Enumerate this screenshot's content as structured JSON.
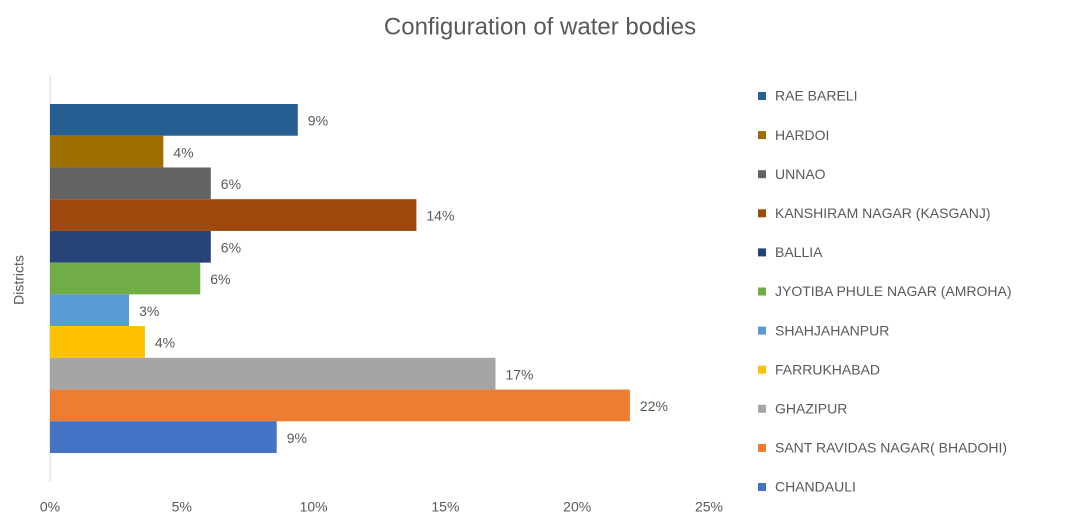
{
  "chart_data": {
    "type": "bar",
    "orientation": "horizontal",
    "title": "Configuration of water bodies",
    "y_label": "Districts",
    "series": [
      {
        "name": "RAE BARELI",
        "color": "#255e91",
        "values": [
          9.4
        ],
        "value_labels": [
          "9%"
        ]
      },
      {
        "name": "HARDOI",
        "color": "#9e7000",
        "values": [
          4.3
        ],
        "value_labels": [
          "4%"
        ]
      },
      {
        "name": "UNNAO",
        "color": "#636363",
        "values": [
          6.1
        ],
        "value_labels": [
          "6%"
        ]
      },
      {
        "name": "KANSHIRAM NAGAR (KASGANJ)",
        "color": "#9e480e",
        "values": [
          13.9
        ],
        "value_labels": [
          "14%"
        ]
      },
      {
        "name": "BALLIA",
        "color": "#264478",
        "values": [
          6.1
        ],
        "value_labels": [
          "6%"
        ]
      },
      {
        "name": "JYOTIBA PHULE NAGAR (AMROHA)",
        "color": "#70ad47",
        "values": [
          5.7
        ],
        "value_labels": [
          "6%"
        ]
      },
      {
        "name": "SHAHJAHANPUR",
        "color": "#5b9bd5",
        "values": [
          3.0
        ],
        "value_labels": [
          "3%"
        ]
      },
      {
        "name": "FARRUKHABAD",
        "color": "#ffc000",
        "values": [
          3.6
        ],
        "value_labels": [
          "4%"
        ]
      },
      {
        "name": "GHAZIPUR",
        "color": "#a5a5a5",
        "values": [
          16.9
        ],
        "value_labels": [
          "17%"
        ]
      },
      {
        "name": "SANT RAVIDAS NAGAR( BHADOHI)",
        "color": "#ed7d31",
        "values": [
          22.0
        ],
        "value_labels": [
          "22%"
        ]
      },
      {
        "name": "CHANDAULI",
        "color": "#4472c4",
        "values": [
          8.6
        ],
        "value_labels": [
          "9%"
        ]
      }
    ],
    "xlim": [
      0,
      25
    ],
    "xticks": [
      {
        "value": 0,
        "label": "0%"
      },
      {
        "value": 5,
        "label": "5%"
      },
      {
        "value": 10,
        "label": "10%"
      },
      {
        "value": 15,
        "label": "15%"
      },
      {
        "value": 20,
        "label": "20%"
      },
      {
        "value": 25,
        "label": "25%"
      }
    ],
    "grid": false,
    "legend": "right"
  }
}
